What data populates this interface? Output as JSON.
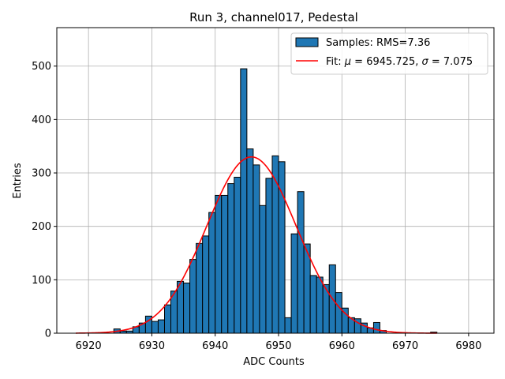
{
  "chart_data": {
    "type": "bar",
    "title": "Run 3, channel017, Pedestal",
    "xlabel": "ADC Counts",
    "ylabel": "Entries",
    "xlim": [
      6915,
      6984
    ],
    "ylim": [
      0,
      572
    ],
    "xticks": [
      6920,
      6930,
      6940,
      6950,
      6960,
      6970,
      6980
    ],
    "yticks": [
      0,
      100,
      200,
      300,
      400,
      500
    ],
    "grid": true,
    "legend_position": "top-right",
    "histogram": {
      "name": "Samples: RMS=7.36",
      "color": "#1f77b4",
      "edge_color": "#000000",
      "bin_width": 1,
      "bins": [
        [
          6924,
          8
        ],
        [
          6925,
          4
        ],
        [
          6926,
          4
        ],
        [
          6927,
          12
        ],
        [
          6928,
          19
        ],
        [
          6929,
          32
        ],
        [
          6930,
          22
        ],
        [
          6931,
          25
        ],
        [
          6932,
          53
        ],
        [
          6933,
          79
        ],
        [
          6934,
          97
        ],
        [
          6935,
          94
        ],
        [
          6936,
          138
        ],
        [
          6937,
          168
        ],
        [
          6938,
          182
        ],
        [
          6939,
          226
        ],
        [
          6940,
          258
        ],
        [
          6941,
          258
        ],
        [
          6942,
          280
        ],
        [
          6943,
          292
        ],
        [
          6944,
          495
        ],
        [
          6945,
          345
        ],
        [
          6946,
          315
        ],
        [
          6947,
          239
        ],
        [
          6948,
          290
        ],
        [
          6949,
          332
        ],
        [
          6950,
          321
        ],
        [
          6951,
          29
        ],
        [
          6952,
          186
        ],
        [
          6953,
          265
        ],
        [
          6954,
          167
        ],
        [
          6955,
          108
        ],
        [
          6956,
          105
        ],
        [
          6957,
          91
        ],
        [
          6958,
          128
        ],
        [
          6959,
          76
        ],
        [
          6960,
          47
        ],
        [
          6961,
          29
        ],
        [
          6962,
          27
        ],
        [
          6963,
          19
        ],
        [
          6964,
          10
        ],
        [
          6965,
          20
        ],
        [
          6966,
          5
        ],
        [
          6974,
          2
        ]
      ]
    },
    "fit": {
      "label": "Fit: μ = 6945.725, σ = 7.075",
      "label_prefix": "Fit: ",
      "label_mu": "μ",
      "label_mu_value": " = 6945.725, ",
      "label_sigma": "σ",
      "label_sigma_value": " = 7.075",
      "mu": 6945.725,
      "sigma": 7.075,
      "amplitude": 330,
      "x_range": [
        6918,
        6975
      ],
      "color": "#ff0000"
    }
  }
}
